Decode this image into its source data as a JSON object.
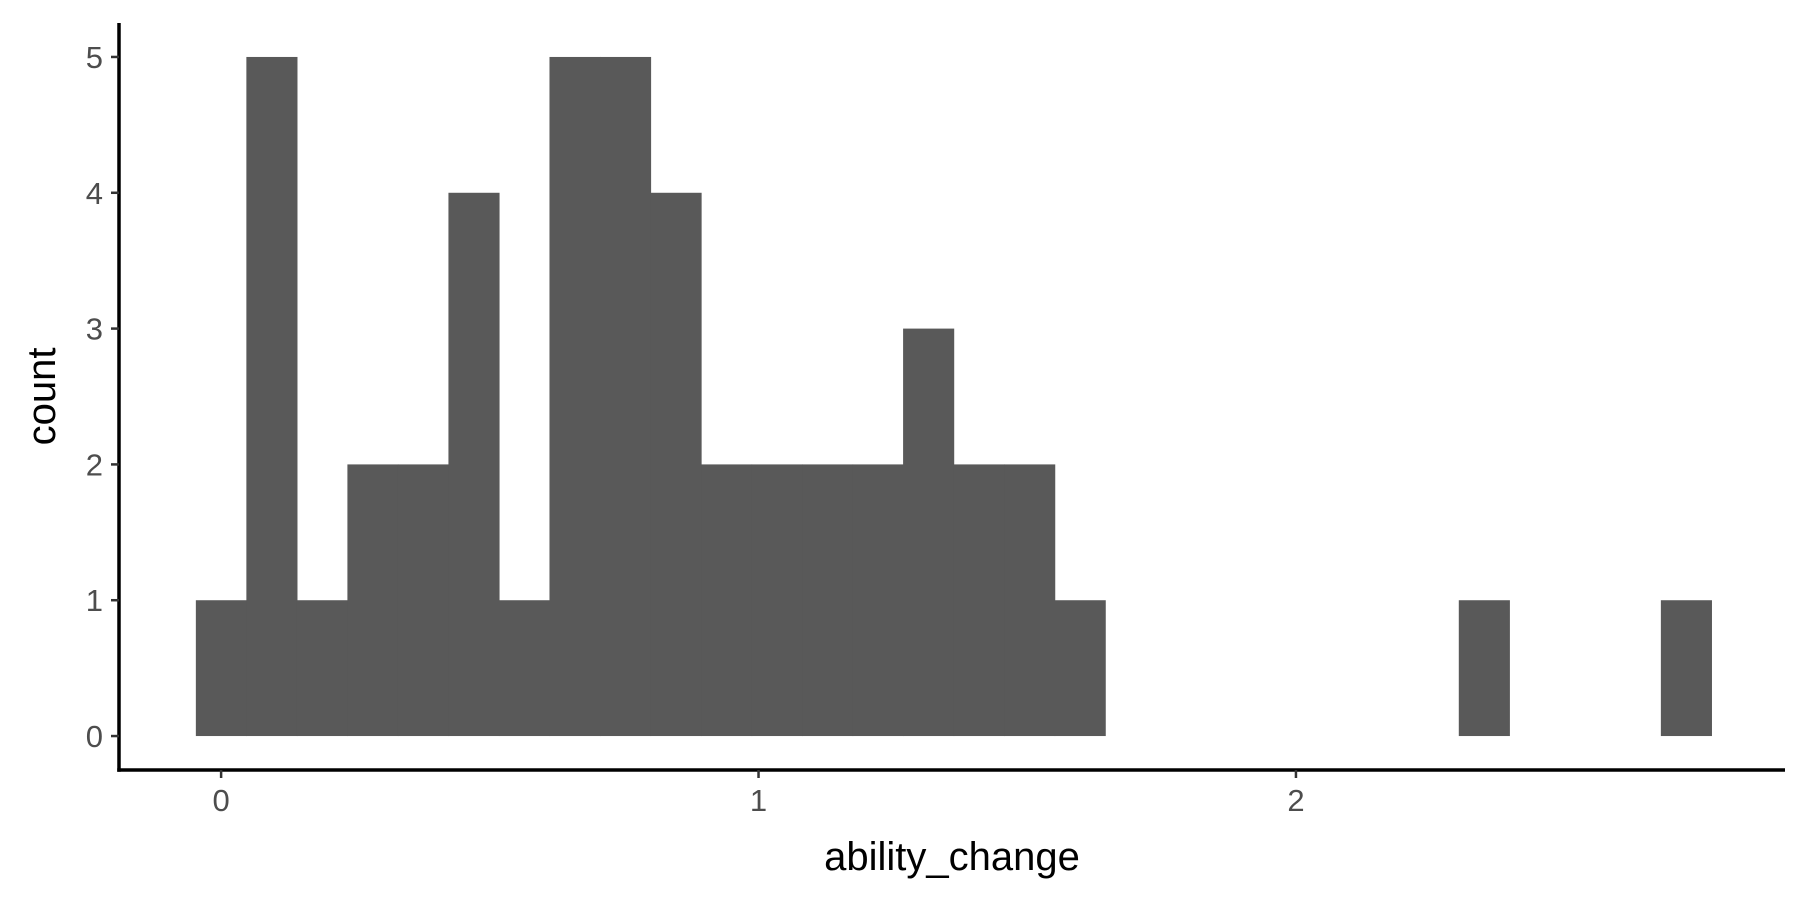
{
  "chart_data": {
    "type": "bar",
    "subtype": "histogram",
    "xlabel": "ability_change",
    "ylabel": "count",
    "bin_width": 0.094,
    "bins": [
      {
        "x0": -0.047,
        "x1": 0.047,
        "count": 1
      },
      {
        "x0": 0.047,
        "x1": 0.141,
        "count": 5
      },
      {
        "x0": 0.141,
        "x1": 0.235,
        "count": 1
      },
      {
        "x0": 0.235,
        "x1": 0.329,
        "count": 2
      },
      {
        "x0": 0.329,
        "x1": 0.423,
        "count": 2
      },
      {
        "x0": 0.423,
        "x1": 0.517,
        "count": 4
      },
      {
        "x0": 0.517,
        "x1": 0.611,
        "count": 1
      },
      {
        "x0": 0.611,
        "x1": 0.705,
        "count": 5
      },
      {
        "x0": 0.705,
        "x1": 0.799,
        "count": 5
      },
      {
        "x0": 0.799,
        "x1": 0.893,
        "count": 4
      },
      {
        "x0": 0.893,
        "x1": 0.987,
        "count": 2
      },
      {
        "x0": 0.987,
        "x1": 1.081,
        "count": 2
      },
      {
        "x0": 1.081,
        "x1": 1.175,
        "count": 2
      },
      {
        "x0": 1.175,
        "x1": 1.269,
        "count": 2
      },
      {
        "x0": 1.269,
        "x1": 1.363,
        "count": 3
      },
      {
        "x0": 1.363,
        "x1": 1.457,
        "count": 2
      },
      {
        "x0": 1.457,
        "x1": 1.551,
        "count": 2
      },
      {
        "x0": 1.551,
        "x1": 1.645,
        "count": 1
      },
      {
        "x0": 2.303,
        "x1": 2.397,
        "count": 1
      },
      {
        "x0": 2.679,
        "x1": 2.773,
        "count": 1
      }
    ],
    "xlim": [
      -0.19,
      2.91
    ],
    "ylim": [
      -0.25,
      5.25
    ],
    "x_ticks": [
      0,
      1,
      2
    ],
    "x_tick_labels": [
      "0",
      "1",
      "2"
    ],
    "y_ticks": [
      0,
      1,
      2,
      3,
      4,
      5
    ],
    "y_tick_labels": [
      "0",
      "1",
      "2",
      "3",
      "4",
      "5"
    ],
    "bar_color": "#595959",
    "background": "#ffffff",
    "grid": false,
    "legend": "none"
  }
}
